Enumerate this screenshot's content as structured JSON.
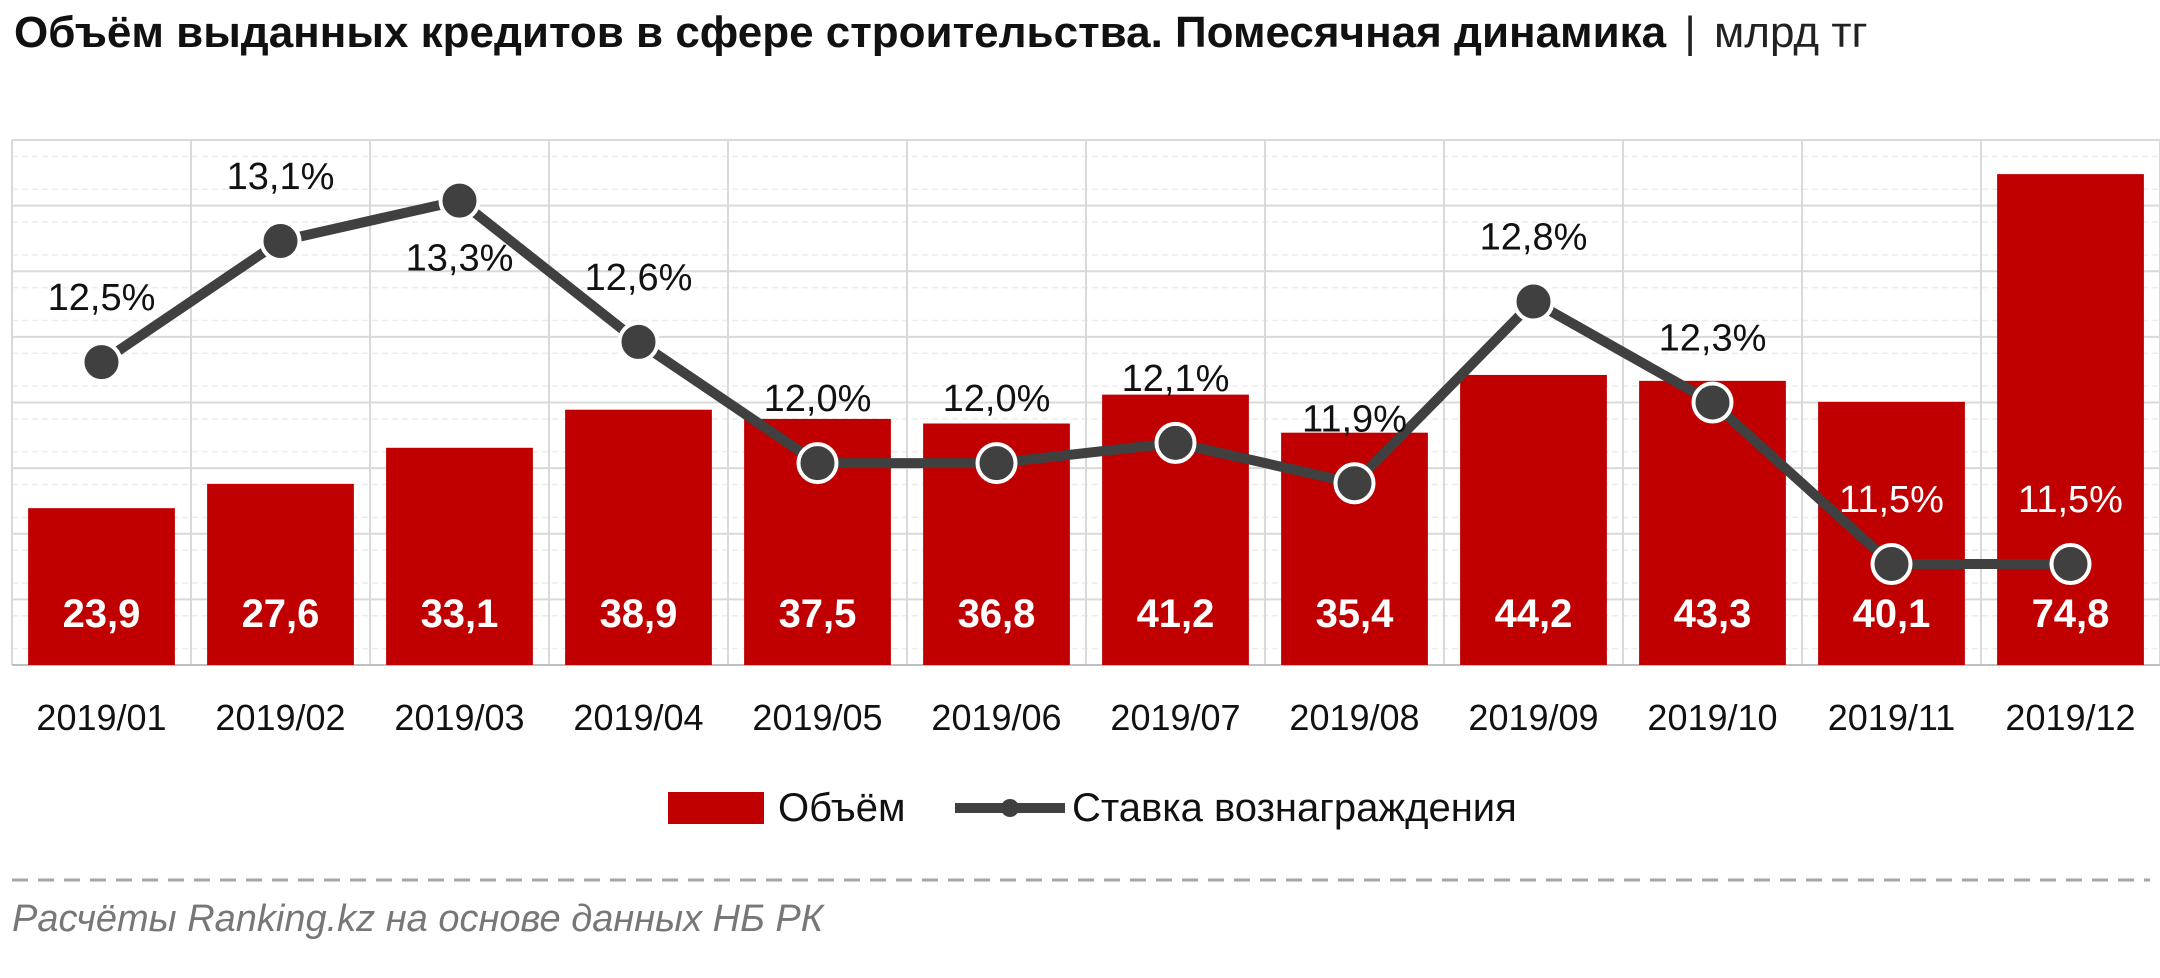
{
  "title": {
    "main": "Объём выданных кредитов в сфере строительства. Помесячная динамика",
    "separator": "|",
    "unit": "млрд тг"
  },
  "source": "Расчёты Ranking.kz на основе данных НБ РК",
  "colors": {
    "bar": "#c00000",
    "line": "#404040",
    "marker": "#404040",
    "grid": "#d9d9d9",
    "dashed_rule": "#a6a6a6"
  },
  "chart_data": {
    "type": "bar",
    "categories": [
      "2019/01",
      "2019/02",
      "2019/03",
      "2019/04",
      "2019/05",
      "2019/06",
      "2019/07",
      "2019/08",
      "2019/09",
      "2019/10",
      "2019/11",
      "2019/12"
    ],
    "series": [
      {
        "name": "Объём",
        "type": "bar",
        "axis": "left",
        "values": [
          23.9,
          27.6,
          33.1,
          38.9,
          37.5,
          36.8,
          41.2,
          35.4,
          44.2,
          43.3,
          40.1,
          74.8
        ],
        "labels": [
          "23,9",
          "27,6",
          "33,1",
          "38,9",
          "37,5",
          "36,8",
          "41,2",
          "35,4",
          "44,2",
          "43,3",
          "40,1",
          "74,8"
        ]
      },
      {
        "name": "Ставка вознаграждения",
        "type": "line",
        "axis": "right",
        "values": [
          12.5,
          13.1,
          13.3,
          12.6,
          12.0,
          12.0,
          12.1,
          11.9,
          12.8,
          12.3,
          11.5,
          11.5
        ],
        "labels": [
          "12,5%",
          "13,1%",
          "13,3%",
          "12,6%",
          "12,0%",
          "12,0%",
          "12,1%",
          "11,9%",
          "12,8%",
          "12,3%",
          "11,5%",
          "11,5%"
        ]
      }
    ],
    "y_left_range": [
      0,
      80
    ],
    "y_right_range": [
      11.0,
      13.6
    ],
    "axis_labels_shown": false,
    "grid": true,
    "legend": "bottom"
  }
}
